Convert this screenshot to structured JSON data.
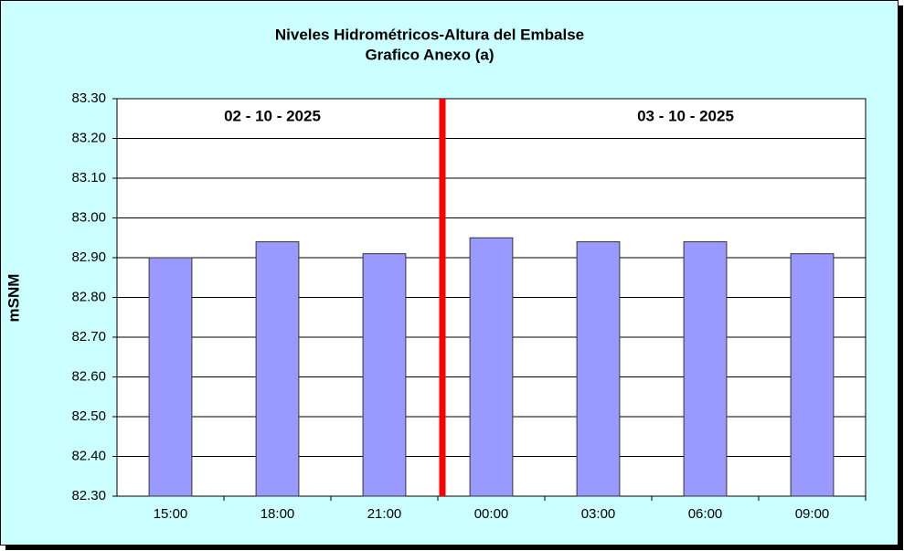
{
  "chart_data": {
    "type": "bar",
    "title": "Niveles Hidrométricos-Altura del Embalse",
    "subtitle": "Grafico Anexo (a)",
    "y_label": "mSNM",
    "annotations": [
      "02 - 10 - 2025",
      "03 - 10 - 2025"
    ],
    "categories": [
      "15:00",
      "18:00",
      "21:00",
      "00:00",
      "03:00",
      "06:00",
      "09:00"
    ],
    "values": [
      82.9,
      82.94,
      82.91,
      82.95,
      82.94,
      82.94,
      82.91
    ],
    "color": "#9999ff",
    "ylim": [
      82.3,
      83.3
    ],
    "yticks": [
      {
        "value": 82.3,
        "label": "82.30"
      },
      {
        "value": 82.4,
        "label": "82.40"
      },
      {
        "value": 82.5,
        "label": "82.50"
      },
      {
        "value": 82.6,
        "label": "82.60"
      },
      {
        "value": 82.7,
        "label": "82.70"
      },
      {
        "value": 82.8,
        "label": "82.80"
      },
      {
        "value": 82.9,
        "label": "82.90"
      },
      {
        "value": 83.0,
        "label": "83.00"
      },
      {
        "value": 83.1,
        "label": "83.10"
      },
      {
        "value": 83.2,
        "label": "83.20"
      },
      {
        "value": 83.3,
        "label": "83.30"
      }
    ],
    "grid": true
  }
}
